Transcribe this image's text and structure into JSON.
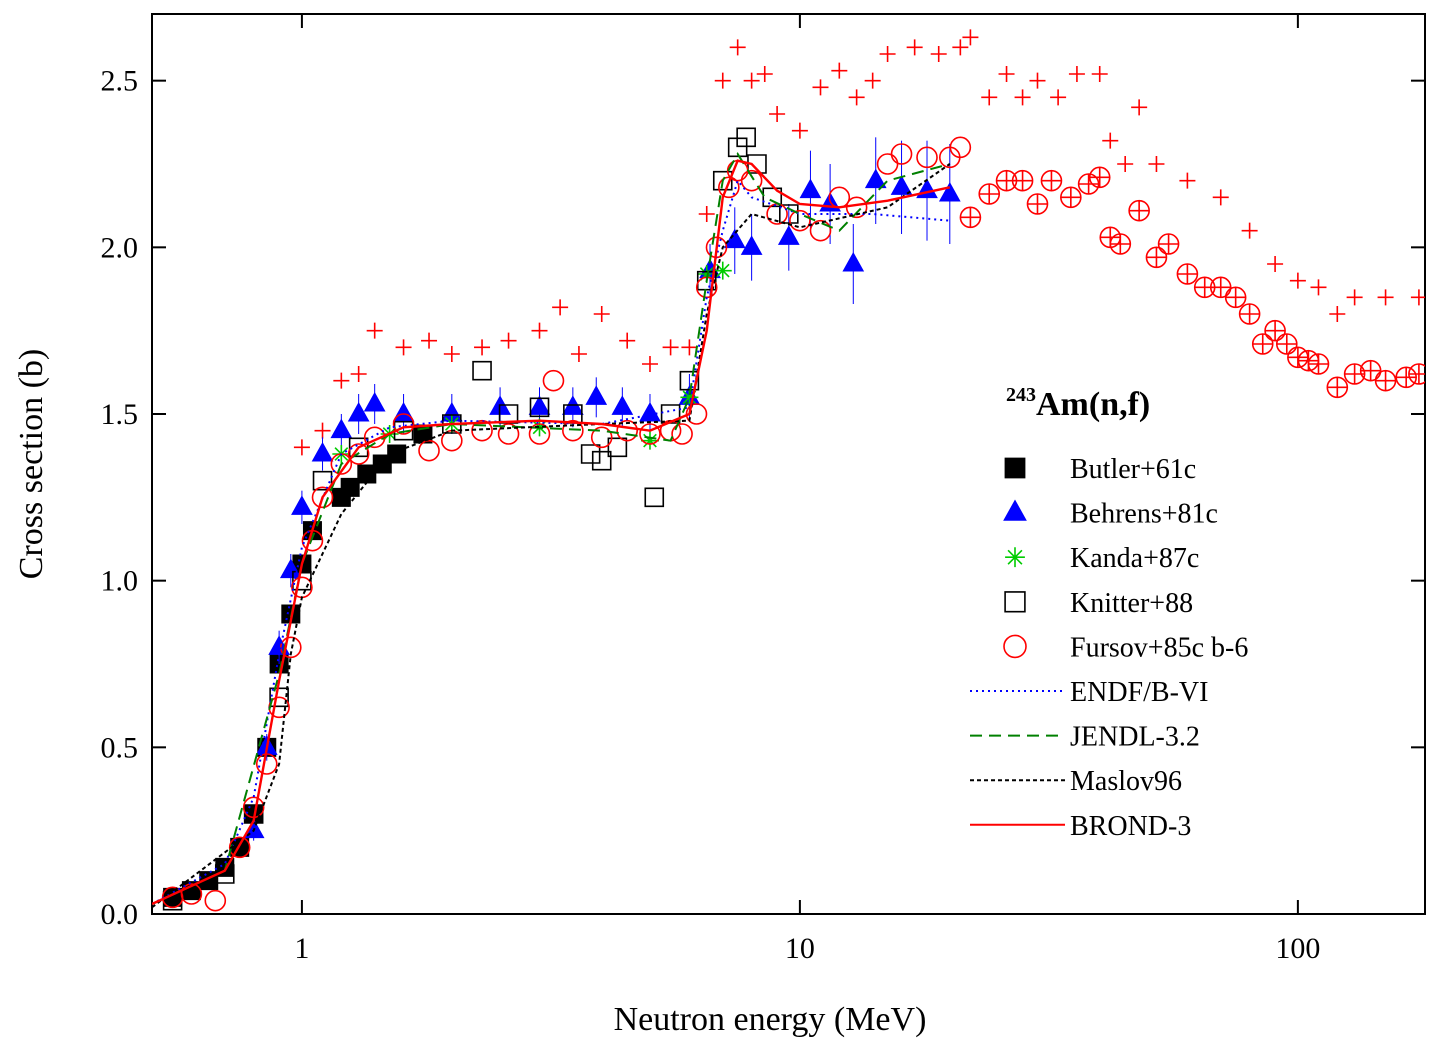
{
  "chart_data": {
    "type": "scatter",
    "x_label": "Neutron energy (MeV)",
    "y_label": "Cross section (b)",
    "annotation_sup": "243",
    "annotation": "Am(n,f)",
    "xscale": "log",
    "xlim": [
      0.5,
      180
    ],
    "ylim": [
      0,
      2.7
    ],
    "xticks": [
      1,
      10,
      100
    ],
    "yticks": [
      {
        "value": 0,
        "label": "0.0"
      },
      0.5,
      {
        "value": 1,
        "label": "1.0"
      },
      1.5,
      {
        "value": 2,
        "label": "2.0"
      },
      2.5
    ],
    "legend_position": "right",
    "series": [
      {
        "color": "#ff0000",
        "marker": "plus",
        "x": [
          1.0,
          1.1,
          1.2,
          1.3,
          1.4,
          1.6,
          1.8,
          2.0,
          2.3,
          2.6,
          3.0,
          3.3,
          3.6,
          4.0,
          4.5,
          5.0,
          5.5,
          6.0,
          6.5,
          7.0,
          7.5,
          8.0,
          8.5,
          9.0,
          10,
          11,
          12,
          13,
          14,
          15,
          17,
          19,
          21,
          22,
          24,
          26,
          28,
          30,
          33,
          36,
          40,
          42,
          45,
          48,
          52,
          60,
          70,
          80,
          90,
          100,
          110,
          120,
          130,
          150,
          175
        ],
        "values": [
          1.4,
          1.45,
          1.6,
          1.62,
          1.75,
          1.7,
          1.72,
          1.68,
          1.7,
          1.72,
          1.75,
          1.82,
          1.68,
          1.8,
          1.72,
          1.65,
          1.7,
          1.7,
          2.1,
          2.5,
          2.6,
          2.5,
          2.52,
          2.4,
          2.35,
          2.48,
          2.53,
          2.45,
          2.5,
          2.58,
          2.6,
          2.58,
          2.6,
          2.63,
          2.45,
          2.52,
          2.45,
          2.5,
          2.45,
          2.52,
          2.52,
          2.32,
          2.25,
          2.42,
          2.25,
          2.2,
          2.15,
          2.05,
          1.95,
          1.9,
          1.88,
          1.8,
          1.85,
          1.85,
          1.85
        ]
      },
      {
        "color": "#ff0000",
        "marker": "circle-plus",
        "x": [
          22,
          24,
          26,
          28,
          30,
          32,
          35,
          38,
          40,
          42,
          44,
          48,
          52,
          55,
          60,
          65,
          70,
          75,
          80,
          85,
          90,
          95,
          100,
          105,
          110,
          120,
          130,
          140,
          150,
          165,
          175
        ],
        "values": [
          2.09,
          2.16,
          2.2,
          2.2,
          2.13,
          2.2,
          2.15,
          2.19,
          2.21,
          2.03,
          2.01,
          2.11,
          1.97,
          2.01,
          1.92,
          1.88,
          1.88,
          1.85,
          1.8,
          1.71,
          1.75,
          1.71,
          1.67,
          1.66,
          1.65,
          1.58,
          1.62,
          1.63,
          1.6,
          1.61,
          1.62
        ]
      },
      {
        "name": "Butler+61c",
        "color": "#000000",
        "marker": "square",
        "x": [
          0.55,
          0.6,
          0.65,
          0.7,
          0.75,
          0.8,
          0.85,
          0.9,
          0.95,
          1.0,
          1.05,
          1.2,
          1.25,
          1.35,
          1.45,
          1.55,
          1.75
        ],
        "values": [
          0.05,
          0.07,
          0.1,
          0.14,
          0.2,
          0.3,
          0.5,
          0.75,
          0.9,
          1.05,
          1.15,
          1.25,
          1.28,
          1.32,
          1.35,
          1.38,
          1.44
        ]
      },
      {
        "name": "Behrens+81c",
        "color": "#0000ff",
        "marker": "triangle",
        "x": [
          0.8,
          0.85,
          0.9,
          0.95,
          1.0,
          1.1,
          1.2,
          1.3,
          1.4,
          1.6,
          2.0,
          2.5,
          3.0,
          3.5,
          3.9,
          4.4,
          5.0,
          6.0,
          6.6,
          7.4,
          8.0,
          9.5,
          10.5,
          11.5,
          12.8,
          14.2,
          16,
          18,
          20
        ],
        "values": [
          0.25,
          0.5,
          0.8,
          1.03,
          1.22,
          1.38,
          1.45,
          1.5,
          1.53,
          1.5,
          1.5,
          1.52,
          1.52,
          1.52,
          1.55,
          1.52,
          1.5,
          1.55,
          1.93,
          2.02,
          2.0,
          2.03,
          2.17,
          2.13,
          1.95,
          2.2,
          2.18,
          2.17,
          2.16
        ],
        "errors": [
          0.03,
          0.04,
          0.05,
          0.05,
          0.05,
          0.05,
          0.05,
          0.06,
          0.06,
          0.06,
          0.06,
          0.06,
          0.06,
          0.06,
          0.06,
          0.06,
          0.06,
          0.07,
          0.08,
          0.1,
          0.1,
          0.1,
          0.12,
          0.12,
          0.12,
          0.13,
          0.14,
          0.15,
          0.15
        ]
      },
      {
        "name": "Kanda+87c",
        "color": "#00cc00",
        "marker": "asterisk",
        "x": [
          1.2,
          1.5,
          2.0,
          3.0,
          5.0,
          6.0,
          6.5,
          7.0
        ],
        "values": [
          1.38,
          1.44,
          1.47,
          1.46,
          1.42,
          1.55,
          1.92,
          1.93
        ]
      },
      {
        "name": "Knitter+88",
        "color": "#000000",
        "marker": "open-square",
        "x": [
          0.55,
          0.7,
          0.8,
          0.9,
          1.0,
          1.1,
          1.3,
          1.6,
          2.0,
          2.3,
          2.6,
          3.0,
          3.5,
          3.8,
          4.0,
          4.3,
          5.1,
          5.5,
          6.0,
          6.5,
          7.0,
          7.5,
          7.8,
          8.2,
          8.8,
          9.5
        ],
        "values": [
          0.04,
          0.12,
          0.3,
          0.65,
          1.0,
          1.3,
          1.4,
          1.45,
          1.47,
          1.63,
          1.5,
          1.52,
          1.5,
          1.38,
          1.36,
          1.4,
          1.25,
          1.5,
          1.6,
          1.9,
          2.2,
          2.3,
          2.33,
          2.25,
          2.15,
          2.1
        ]
      },
      {
        "name": "Fursov+85c b-6",
        "color": "#ff0000",
        "marker": "circle",
        "x": [
          0.55,
          0.6,
          0.67,
          0.75,
          0.8,
          0.85,
          0.9,
          0.95,
          1.0,
          1.05,
          1.1,
          1.2,
          1.3,
          1.4,
          1.6,
          1.8,
          2.0,
          2.3,
          2.6,
          3.0,
          3.2,
          3.5,
          4.0,
          4.5,
          5.0,
          5.5,
          5.8,
          6.2,
          6.5,
          6.8,
          7.2,
          7.5,
          8.0,
          9.0,
          10,
          11,
          12,
          13,
          15,
          16,
          18,
          20,
          21
        ],
        "values": [
          0.05,
          0.06,
          0.04,
          0.2,
          0.32,
          0.45,
          0.62,
          0.8,
          0.98,
          1.12,
          1.25,
          1.35,
          1.38,
          1.43,
          1.47,
          1.39,
          1.42,
          1.45,
          1.44,
          1.44,
          1.6,
          1.45,
          1.43,
          1.45,
          1.44,
          1.45,
          1.44,
          1.5,
          1.88,
          2.0,
          2.18,
          2.23,
          2.2,
          2.1,
          2.08,
          2.05,
          2.15,
          2.12,
          2.25,
          2.28,
          2.27,
          2.27,
          2.3
        ]
      },
      {
        "name": "ENDF/B-VI",
        "color": "#0000ff",
        "line": "dotted",
        "x": [
          0.5,
          0.7,
          0.8,
          0.9,
          1.0,
          1.2,
          1.5,
          2,
          4,
          6,
          6.5,
          7,
          7.5,
          8,
          10,
          14,
          20
        ],
        "values": [
          0.03,
          0.15,
          0.35,
          0.78,
          1.1,
          1.38,
          1.46,
          1.48,
          1.47,
          1.52,
          1.85,
          2.05,
          2.2,
          2.15,
          2.1,
          2.1,
          2.08
        ]
      },
      {
        "name": "JENDL-3.2",
        "color": "#008000",
        "line": "dashed",
        "x": [
          0.5,
          0.7,
          0.9,
          1.0,
          1.2,
          1.5,
          2,
          4,
          5.5,
          6,
          6.5,
          7,
          7.5,
          8.5,
          10,
          12,
          15,
          20
        ],
        "values": [
          0.03,
          0.13,
          0.72,
          1.05,
          1.35,
          1.44,
          1.47,
          1.45,
          1.42,
          1.55,
          1.9,
          2.2,
          2.28,
          2.15,
          2.1,
          2.05,
          2.2,
          2.25
        ]
      },
      {
        "name": "Maslov96",
        "color": "#000000",
        "line": "short-dash",
        "x": [
          0.5,
          0.8,
          0.9,
          0.95,
          1.0,
          1.2,
          1.5,
          2,
          4,
          6,
          6.5,
          7,
          8,
          10,
          15,
          20
        ],
        "values": [
          0.02,
          0.25,
          0.45,
          0.78,
          0.95,
          1.2,
          1.38,
          1.45,
          1.47,
          1.48,
          1.8,
          2.0,
          2.1,
          2.06,
          2.12,
          2.25
        ]
      },
      {
        "name": "BROND-3",
        "color": "#ff0000",
        "line": "solid",
        "x": [
          0.5,
          0.7,
          0.8,
          0.9,
          1.0,
          1.1,
          1.3,
          1.6,
          2,
          3,
          4,
          5,
          6,
          6.5,
          7,
          7.5,
          8,
          9,
          10,
          12,
          15,
          20
        ],
        "values": [
          0.03,
          0.13,
          0.28,
          0.7,
          1.05,
          1.25,
          1.4,
          1.46,
          1.47,
          1.48,
          1.47,
          1.45,
          1.5,
          1.75,
          2.15,
          2.26,
          2.25,
          2.17,
          2.13,
          2.12,
          2.14,
          2.18
        ]
      }
    ]
  }
}
